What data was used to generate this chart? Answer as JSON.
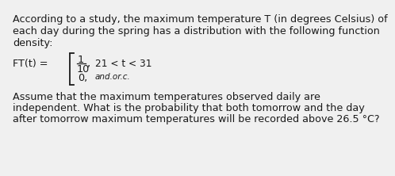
{
  "bg_color": "#f0f0f0",
  "text_color": "#1a1a1a",
  "line1": "According to a study, the maximum temperature T (in degrees Celsius) of",
  "line2": "each day during the spring has a distribution with the following function",
  "line3": "density:",
  "ft_label": "FT(t) = ",
  "fraction_num": "1",
  "fraction_den": "10",
  "comma": ",",
  "condition1": "21 < t < 31",
  "zero_label": "0,",
  "otherwise_label": "and.or.c.",
  "bottom_line1": "Assume that the maximum temperatures observed daily are",
  "bottom_line2": "independent. What is the probability that both tomorrow and the day",
  "bottom_line3": "after tomorrow maximum temperatures will be recorded above 26.5 °C?",
  "font_size_main": 9.2,
  "font_size_small": 7.5,
  "font_family": "DejaVu Sans"
}
